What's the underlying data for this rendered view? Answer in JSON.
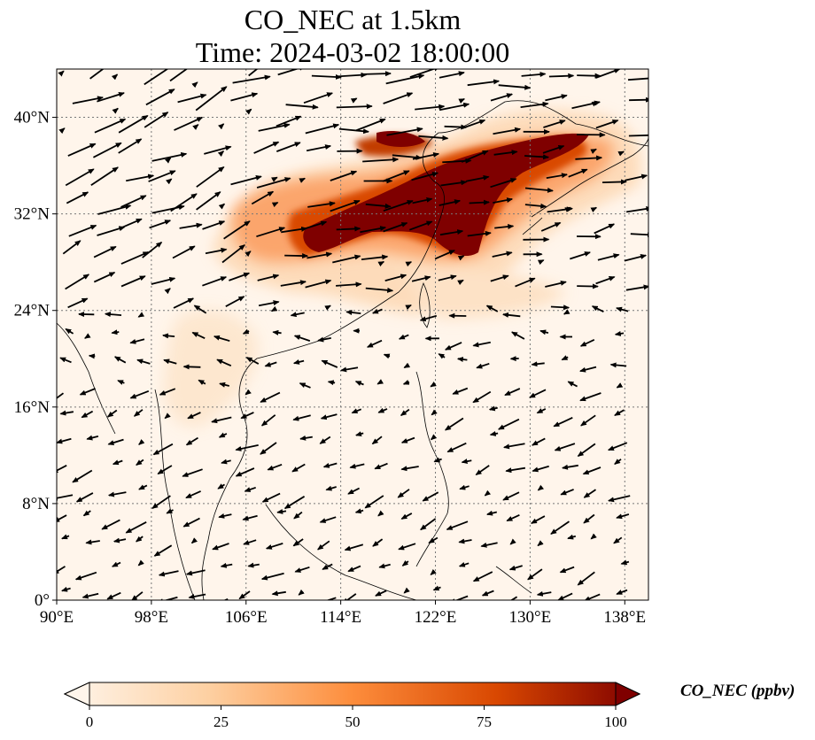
{
  "title": {
    "line1": "CO_NEC at 1.5km",
    "line2": "Time: 2024-03-02 18:00:00"
  },
  "map": {
    "lon_range": [
      90,
      140
    ],
    "lat_range": [
      0,
      44
    ],
    "lon_ticks": [
      "90°E",
      "98°E",
      "106°E",
      "114°E",
      "122°E",
      "130°E",
      "138°E"
    ],
    "lat_ticks": [
      "0°",
      "8°N",
      "16°N",
      "24°N",
      "32°N",
      "40°N"
    ],
    "gridlines": true,
    "colormap": [
      "#fff5eb",
      "#fdd0a2",
      "#fd8d3c",
      "#d94801",
      "#7f0000"
    ]
  },
  "colorbar": {
    "label": "CO_NEC (ppbv)",
    "ticks": [
      "0",
      "25",
      "50",
      "75",
      "100"
    ],
    "range": [
      0,
      100
    ]
  }
}
